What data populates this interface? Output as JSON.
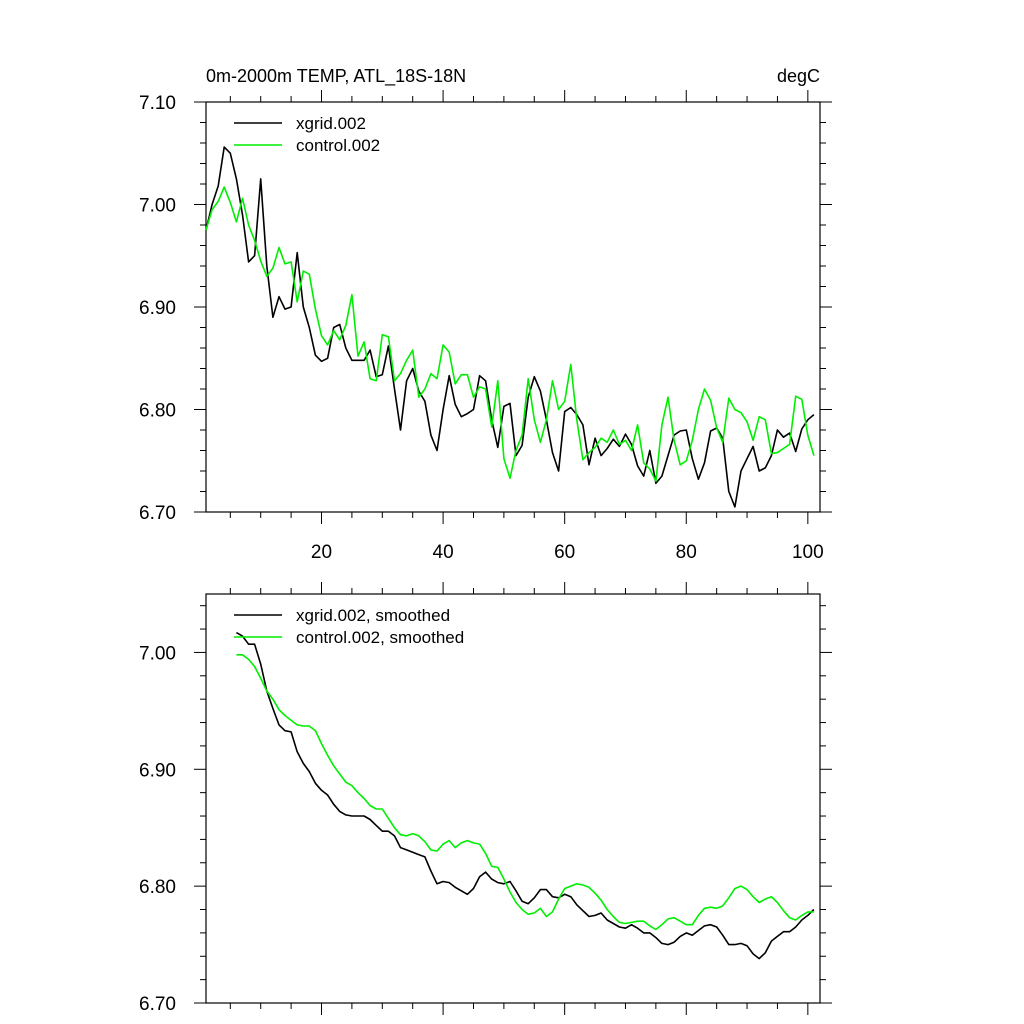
{
  "chart_data": [
    {
      "type": "line",
      "title_left": "0m-2000m TEMP, ATL_18S-18N",
      "title_right": "degC",
      "xlabel": "",
      "ylabel": "",
      "xlim": [
        1,
        102
      ],
      "ylim": [
        6.7,
        7.1
      ],
      "y_ticks": [
        6.7,
        6.8,
        6.9,
        7.0,
        7.1
      ],
      "y_tick_labels": [
        "6.70",
        "6.80",
        "6.90",
        "7.00",
        "7.10"
      ],
      "x_ticks": [
        20,
        40,
        60,
        80,
        100
      ],
      "x_tick_labels": [
        "20",
        "40",
        "60",
        "80",
        "100"
      ],
      "legend_position": "top-left",
      "series": [
        {
          "name": "xgrid.002",
          "color": "#000000",
          "x_start": 1,
          "values": [
            6.975,
            7.0,
            7.018,
            7.056,
            7.05,
            7.025,
            6.99,
            6.944,
            6.95,
            7.025,
            6.94,
            6.89,
            6.91,
            6.898,
            6.9,
            6.953,
            6.9,
            6.88,
            6.853,
            6.847,
            6.85,
            6.88,
            6.883,
            6.86,
            6.848,
            6.848,
            6.848,
            6.858,
            6.832,
            6.834,
            6.862,
            6.82,
            6.78,
            6.828,
            6.84,
            6.818,
            6.808,
            6.775,
            6.76,
            6.8,
            6.833,
            6.805,
            6.793,
            6.796,
            6.8,
            6.833,
            6.828,
            6.79,
            6.763,
            6.803,
            6.806,
            6.755,
            6.765,
            6.812,
            6.832,
            6.818,
            6.79,
            6.758,
            6.74,
            6.798,
            6.802,
            6.795,
            6.785,
            6.746,
            6.772,
            6.755,
            6.762,
            6.771,
            6.764,
            6.776,
            6.766,
            6.745,
            6.735,
            6.76,
            6.728,
            6.735,
            6.755,
            6.775,
            6.779,
            6.78,
            6.752,
            6.732,
            6.748,
            6.779,
            6.782,
            6.772,
            6.72,
            6.705,
            6.74,
            6.752,
            6.764,
            6.74,
            6.743,
            6.755,
            6.78,
            6.773,
            6.777,
            6.759,
            6.781,
            6.79,
            6.795
          ]
        },
        {
          "name": "control.002",
          "color": "#00ee00",
          "x_start": 1,
          "values": [
            6.975,
            6.995,
            7.003,
            7.017,
            7.002,
            6.983,
            7.006,
            6.98,
            6.965,
            6.945,
            6.93,
            6.938,
            6.958,
            6.942,
            6.944,
            6.905,
            6.935,
            6.932,
            6.898,
            6.872,
            6.863,
            6.877,
            6.868,
            6.882,
            6.912,
            6.852,
            6.866,
            6.83,
            6.828,
            6.873,
            6.871,
            6.828,
            6.835,
            6.848,
            6.858,
            6.812,
            6.82,
            6.835,
            6.83,
            6.863,
            6.856,
            6.825,
            6.834,
            6.834,
            6.812,
            6.822,
            6.82,
            6.783,
            6.828,
            6.752,
            6.733,
            6.76,
            6.775,
            6.83,
            6.79,
            6.768,
            6.79,
            6.828,
            6.8,
            6.808,
            6.844,
            6.79,
            6.751,
            6.758,
            6.763,
            6.772,
            6.768,
            6.78,
            6.766,
            6.77,
            6.76,
            6.785,
            6.748,
            6.742,
            6.73,
            6.785,
            6.812,
            6.77,
            6.746,
            6.75,
            6.77,
            6.8,
            6.82,
            6.809,
            6.782,
            6.768,
            6.811,
            6.8,
            6.797,
            6.788,
            6.77,
            6.793,
            6.79,
            6.757,
            6.758,
            6.762,
            6.766,
            6.813,
            6.81,
            6.775,
            6.755
          ]
        }
      ]
    },
    {
      "type": "line",
      "title_left": "",
      "title_right": "",
      "xlabel": "",
      "ylabel": "",
      "xlim": [
        1,
        102
      ],
      "ylim": [
        6.7,
        7.05
      ],
      "y_ticks": [
        6.7,
        6.8,
        6.9,
        7.0
      ],
      "y_tick_labels": [
        "6.70",
        "6.80",
        "6.90",
        "7.00"
      ],
      "x_ticks": [
        20,
        40,
        60,
        80,
        100
      ],
      "x_tick_labels": [],
      "legend_position": "top-left",
      "series": [
        {
          "name": "xgrid.002, smoothed",
          "color": "#000000",
          "x_start": 6,
          "values": [
            7.017,
            7.014,
            7.007,
            7.007,
            6.99,
            6.967,
            6.952,
            6.938,
            6.933,
            6.932,
            6.915,
            6.905,
            6.898,
            6.888,
            6.882,
            6.878,
            6.87,
            6.864,
            6.861,
            6.86,
            6.86,
            6.86,
            6.857,
            6.852,
            6.847,
            6.847,
            6.843,
            6.833,
            6.831,
            6.829,
            6.827,
            6.825,
            6.813,
            6.802,
            6.804,
            6.803,
            6.799,
            6.796,
            6.793,
            6.798,
            6.808,
            6.812,
            6.806,
            6.803,
            6.802,
            6.804,
            6.796,
            6.787,
            6.785,
            6.79,
            6.797,
            6.797,
            6.791,
            6.79,
            6.793,
            6.791,
            6.784,
            6.779,
            6.774,
            6.775,
            6.777,
            6.771,
            6.768,
            6.765,
            6.764,
            6.767,
            6.764,
            6.76,
            6.76,
            6.756,
            6.751,
            6.75,
            6.752,
            6.757,
            6.76,
            6.758,
            6.762,
            6.766,
            6.767,
            6.765,
            6.758,
            6.75,
            6.75,
            6.751,
            6.749,
            6.742,
            6.738,
            6.743,
            6.753,
            6.757,
            6.761,
            6.761,
            6.765,
            6.771,
            6.775,
            6.78
          ]
        },
        {
          "name": "control.002, smoothed",
          "color": "#00ee00",
          "x_start": 6,
          "values": [
            6.998,
            6.998,
            6.994,
            6.988,
            6.978,
            6.967,
            6.96,
            6.951,
            6.946,
            6.942,
            6.938,
            6.937,
            6.937,
            6.933,
            6.922,
            6.912,
            6.903,
            6.896,
            6.889,
            6.886,
            6.88,
            6.875,
            6.869,
            6.866,
            6.866,
            6.858,
            6.85,
            6.844,
            6.843,
            6.845,
            6.843,
            6.838,
            6.831,
            6.83,
            6.836,
            6.839,
            6.833,
            6.837,
            6.839,
            6.837,
            6.836,
            6.828,
            6.817,
            6.816,
            6.806,
            6.795,
            6.786,
            6.78,
            6.776,
            6.777,
            6.781,
            6.774,
            6.778,
            6.789,
            6.798,
            6.8,
            6.802,
            6.801,
            6.799,
            6.794,
            6.788,
            6.78,
            6.774,
            6.769,
            6.768,
            6.769,
            6.77,
            6.77,
            6.766,
            6.763,
            6.767,
            6.772,
            6.773,
            6.77,
            6.767,
            6.767,
            6.775,
            6.781,
            6.782,
            6.781,
            6.783,
            6.79,
            6.798,
            6.8,
            6.797,
            6.791,
            6.786,
            6.789,
            6.791,
            6.786,
            6.779,
            6.773,
            6.771,
            6.775,
            6.778,
            6.778
          ]
        }
      ]
    }
  ]
}
